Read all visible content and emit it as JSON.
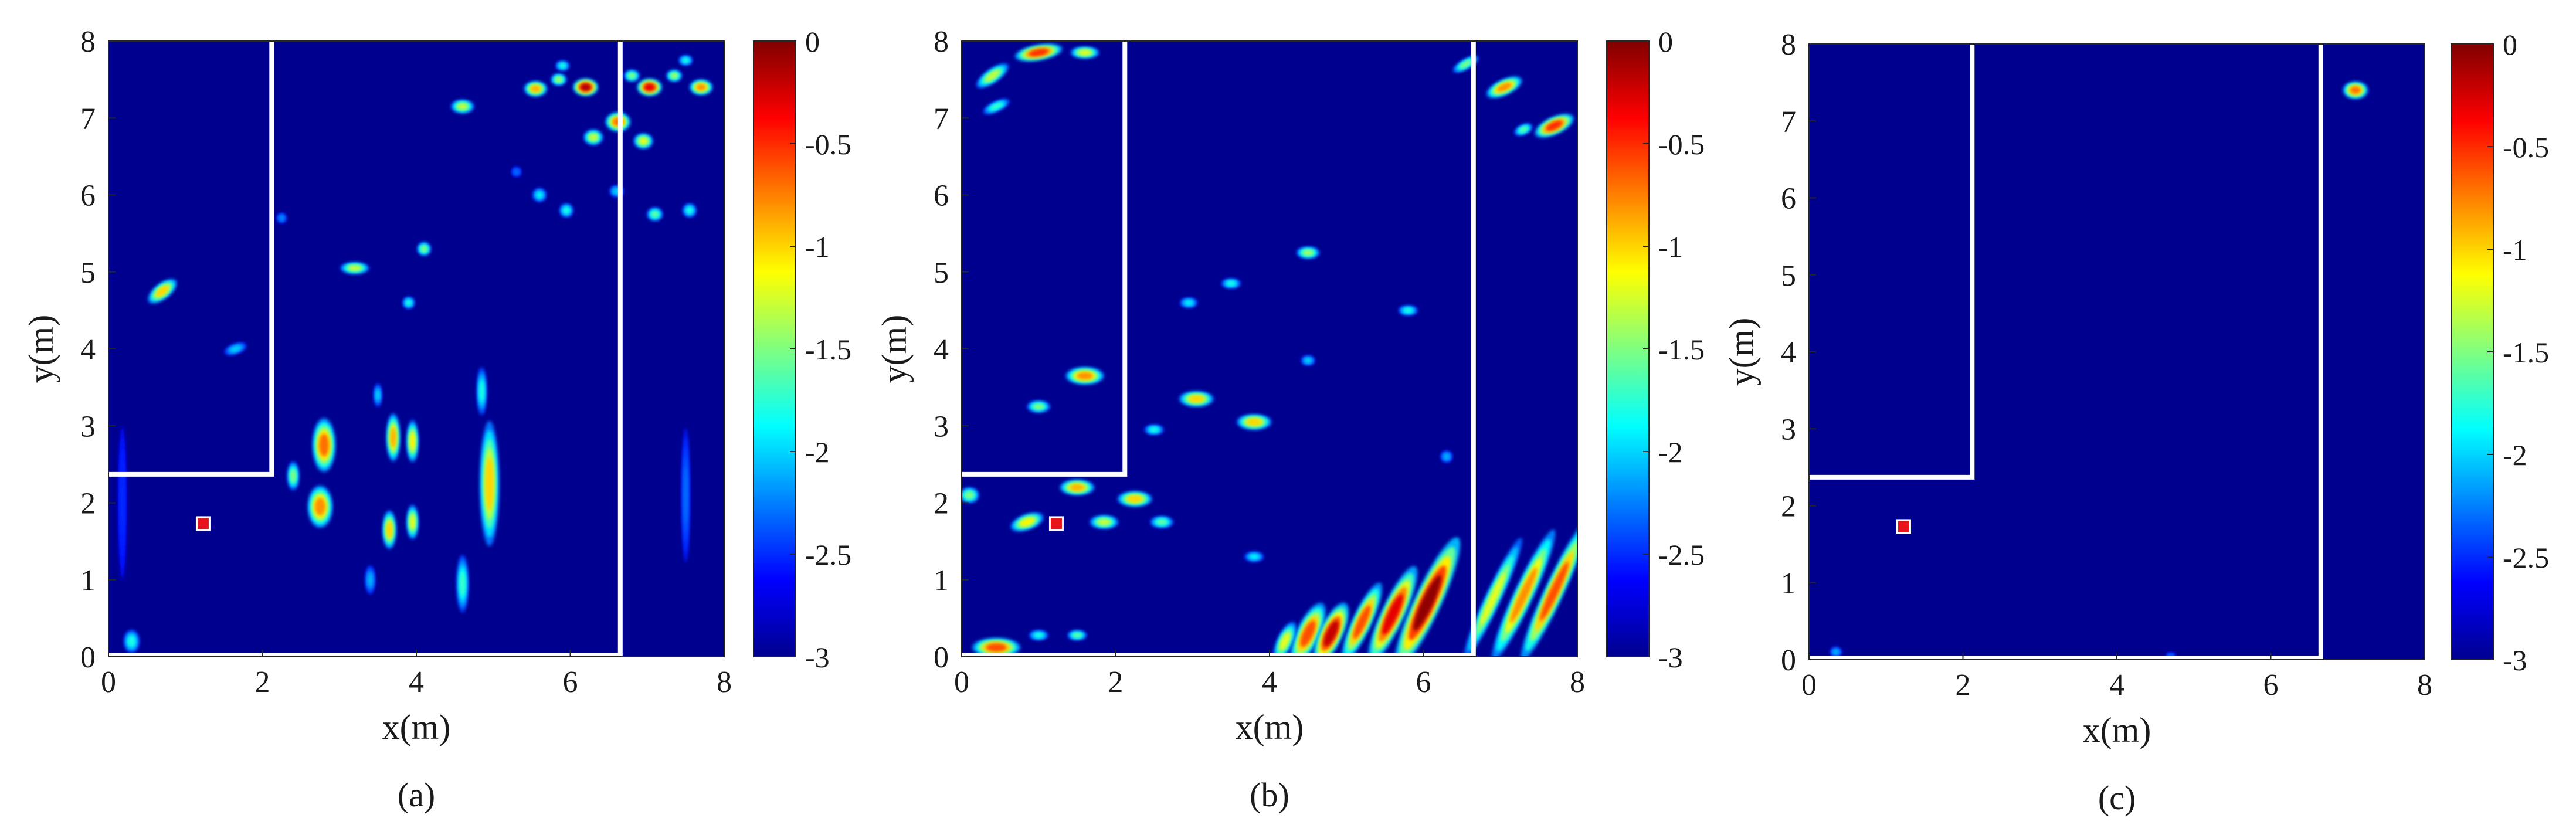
{
  "chart_data": [
    {
      "type": "heatmap",
      "panel_label": "(a)",
      "xlabel": "x(m)",
      "ylabel": "y(m)",
      "xlim": [
        0,
        8
      ],
      "ylim": [
        0,
        8
      ],
      "xticks": [
        "0",
        "2",
        "4",
        "6",
        "8"
      ],
      "yticks": [
        "0",
        "1",
        "2",
        "3",
        "4",
        "5",
        "6",
        "7",
        "8"
      ],
      "colorbar": {
        "range": [
          -3,
          0
        ],
        "ticks": [
          "0",
          "-0.5",
          "-1",
          "-1.5",
          "-2",
          "-2.5",
          "-3"
        ],
        "colormap": "jet"
      },
      "background_color": "#00008f",
      "walls": [
        [
          [
            0,
            2.37
          ],
          [
            2.12,
            2.37
          ],
          [
            2.12,
            8.0
          ]
        ],
        [
          [
            0,
            0.02
          ],
          [
            6.65,
            0.02
          ],
          [
            6.65,
            8.0
          ]
        ]
      ],
      "marker": {
        "x": 1.23,
        "y": 1.73,
        "color": "#e8141d"
      },
      "blobs": [
        {
          "x": 5.55,
          "y": 7.38,
          "rx": 0.12,
          "ry": 0.08,
          "v": -0.9
        },
        {
          "x": 6.2,
          "y": 7.4,
          "rx": 0.13,
          "ry": 0.09,
          "v": -0.15
        },
        {
          "x": 7.03,
          "y": 7.4,
          "rx": 0.13,
          "ry": 0.09,
          "v": -0.3
        },
        {
          "x": 7.7,
          "y": 7.4,
          "rx": 0.12,
          "ry": 0.08,
          "v": -0.8
        },
        {
          "x": 5.85,
          "y": 7.5,
          "rx": 0.08,
          "ry": 0.06,
          "v": -1.4
        },
        {
          "x": 6.8,
          "y": 7.55,
          "rx": 0.08,
          "ry": 0.06,
          "v": -1.5
        },
        {
          "x": 7.35,
          "y": 7.55,
          "rx": 0.08,
          "ry": 0.06,
          "v": -1.4
        },
        {
          "x": 5.9,
          "y": 7.68,
          "rx": 0.07,
          "ry": 0.05,
          "v": -1.8
        },
        {
          "x": 7.5,
          "y": 7.75,
          "rx": 0.07,
          "ry": 0.05,
          "v": -1.8
        },
        {
          "x": 6.62,
          "y": 6.95,
          "rx": 0.13,
          "ry": 0.1,
          "v": -0.7
        },
        {
          "x": 6.3,
          "y": 6.75,
          "rx": 0.1,
          "ry": 0.08,
          "v": -1.3
        },
        {
          "x": 6.95,
          "y": 6.7,
          "rx": 0.1,
          "ry": 0.08,
          "v": -1.2
        },
        {
          "x": 4.6,
          "y": 7.15,
          "rx": 0.12,
          "ry": 0.07,
          "v": -1.3
        },
        {
          "x": 5.6,
          "y": 6.0,
          "rx": 0.07,
          "ry": 0.07,
          "v": -1.9
        },
        {
          "x": 5.95,
          "y": 5.8,
          "rx": 0.07,
          "ry": 0.07,
          "v": -1.8
        },
        {
          "x": 7.1,
          "y": 5.75,
          "rx": 0.08,
          "ry": 0.07,
          "v": -1.6
        },
        {
          "x": 7.55,
          "y": 5.8,
          "rx": 0.07,
          "ry": 0.07,
          "v": -1.8
        },
        {
          "x": 6.6,
          "y": 6.05,
          "rx": 0.07,
          "ry": 0.06,
          "v": -2.0
        },
        {
          "x": 4.1,
          "y": 5.3,
          "rx": 0.07,
          "ry": 0.07,
          "v": -1.5
        },
        {
          "x": 3.2,
          "y": 5.05,
          "rx": 0.15,
          "ry": 0.06,
          "v": -1.3
        },
        {
          "x": 3.9,
          "y": 4.6,
          "rx": 0.06,
          "ry": 0.06,
          "v": -1.8
        },
        {
          "x": 0.7,
          "y": 4.75,
          "rx": 0.18,
          "ry": 0.08,
          "v": -1.0,
          "rot": -38
        },
        {
          "x": 1.65,
          "y": 4.0,
          "rx": 0.12,
          "ry": 0.05,
          "v": -2.0,
          "rot": -20
        },
        {
          "x": 2.8,
          "y": 2.75,
          "rx": 0.12,
          "ry": 0.28,
          "v": -0.7
        },
        {
          "x": 2.75,
          "y": 1.95,
          "rx": 0.13,
          "ry": 0.22,
          "v": -0.8
        },
        {
          "x": 2.4,
          "y": 2.35,
          "rx": 0.06,
          "ry": 0.15,
          "v": -1.5
        },
        {
          "x": 3.7,
          "y": 2.85,
          "rx": 0.07,
          "ry": 0.25,
          "v": -0.9
        },
        {
          "x": 3.95,
          "y": 2.8,
          "rx": 0.06,
          "ry": 0.22,
          "v": -1.1
        },
        {
          "x": 3.65,
          "y": 1.65,
          "rx": 0.07,
          "ry": 0.2,
          "v": -1.0
        },
        {
          "x": 3.95,
          "y": 1.75,
          "rx": 0.06,
          "ry": 0.18,
          "v": -1.2
        },
        {
          "x": 3.5,
          "y": 3.4,
          "rx": 0.04,
          "ry": 0.12,
          "v": -2.0
        },
        {
          "x": 4.95,
          "y": 2.25,
          "rx": 0.1,
          "ry": 0.65,
          "v": -1.0
        },
        {
          "x": 4.85,
          "y": 3.45,
          "rx": 0.05,
          "ry": 0.25,
          "v": -1.8
        },
        {
          "x": 4.6,
          "y": 0.95,
          "rx": 0.06,
          "ry": 0.3,
          "v": -1.7
        },
        {
          "x": 3.4,
          "y": 1.0,
          "rx": 0.05,
          "ry": 0.15,
          "v": -2.1
        },
        {
          "x": 0.3,
          "y": 0.2,
          "rx": 0.08,
          "ry": 0.12,
          "v": -1.8
        },
        {
          "x": 7.5,
          "y": 2.1,
          "rx": 0.04,
          "ry": 0.7,
          "v": -2.3
        },
        {
          "x": 0.18,
          "y": 2.0,
          "rx": 0.04,
          "ry": 0.8,
          "v": -2.5
        },
        {
          "x": 2.25,
          "y": 5.7,
          "rx": 0.05,
          "ry": 0.05,
          "v": -2.2
        },
        {
          "x": 5.3,
          "y": 6.3,
          "rx": 0.05,
          "ry": 0.05,
          "v": -2.3
        }
      ]
    },
    {
      "type": "heatmap",
      "panel_label": "(b)",
      "xlabel": "x(m)",
      "ylabel": "y(m)",
      "xlim": [
        0,
        8
      ],
      "ylim": [
        0,
        8
      ],
      "xticks": [
        "0",
        "2",
        "4",
        "6",
        "8"
      ],
      "yticks": [
        "0",
        "1",
        "2",
        "3",
        "4",
        "5",
        "6",
        "7",
        "8"
      ],
      "colorbar": {
        "range": [
          -3,
          0
        ],
        "ticks": [
          "0",
          "-0.5",
          "-1",
          "-1.5",
          "-2",
          "-2.5",
          "-3"
        ],
        "colormap": "jet"
      },
      "background_color": "#00008f",
      "walls": [
        [
          [
            0,
            2.37
          ],
          [
            2.12,
            2.37
          ],
          [
            2.12,
            8.0
          ]
        ],
        [
          [
            0,
            0.02
          ],
          [
            6.65,
            0.02
          ],
          [
            6.65,
            8.0
          ]
        ]
      ],
      "marker": {
        "x": 1.23,
        "y": 1.73,
        "color": "#e8141d"
      },
      "blobs": [
        {
          "x": 1.0,
          "y": 7.85,
          "rx": 0.25,
          "ry": 0.08,
          "v": -0.5,
          "rot": -10
        },
        {
          "x": 1.6,
          "y": 7.85,
          "rx": 0.15,
          "ry": 0.06,
          "v": -1.2
        },
        {
          "x": 0.4,
          "y": 7.55,
          "rx": 0.2,
          "ry": 0.07,
          "v": -1.3,
          "rot": -35
        },
        {
          "x": 0.45,
          "y": 7.15,
          "rx": 0.15,
          "ry": 0.05,
          "v": -1.7,
          "rot": -25
        },
        {
          "x": 7.05,
          "y": 7.4,
          "rx": 0.2,
          "ry": 0.08,
          "v": -0.8,
          "rot": -25
        },
        {
          "x": 7.7,
          "y": 6.9,
          "rx": 0.22,
          "ry": 0.09,
          "v": -0.5,
          "rot": -25
        },
        {
          "x": 6.55,
          "y": 7.7,
          "rx": 0.15,
          "ry": 0.05,
          "v": -1.5,
          "rot": -30
        },
        {
          "x": 7.3,
          "y": 6.85,
          "rx": 0.1,
          "ry": 0.05,
          "v": -1.6,
          "rot": -25
        },
        {
          "x": 4.5,
          "y": 5.25,
          "rx": 0.12,
          "ry": 0.06,
          "v": -1.4
        },
        {
          "x": 3.5,
          "y": 4.85,
          "rx": 0.1,
          "ry": 0.05,
          "v": -1.8
        },
        {
          "x": 2.95,
          "y": 4.6,
          "rx": 0.09,
          "ry": 0.05,
          "v": -1.9
        },
        {
          "x": 5.8,
          "y": 4.5,
          "rx": 0.1,
          "ry": 0.05,
          "v": -1.8
        },
        {
          "x": 1.6,
          "y": 3.65,
          "rx": 0.2,
          "ry": 0.09,
          "v": -0.8
        },
        {
          "x": 3.05,
          "y": 3.35,
          "rx": 0.18,
          "ry": 0.08,
          "v": -1.0
        },
        {
          "x": 3.8,
          "y": 3.05,
          "rx": 0.18,
          "ry": 0.08,
          "v": -1.0
        },
        {
          "x": 1.0,
          "y": 3.25,
          "rx": 0.12,
          "ry": 0.06,
          "v": -1.5
        },
        {
          "x": 2.5,
          "y": 2.95,
          "rx": 0.1,
          "ry": 0.05,
          "v": -1.8
        },
        {
          "x": 1.5,
          "y": 2.2,
          "rx": 0.18,
          "ry": 0.08,
          "v": -0.9
        },
        {
          "x": 2.25,
          "y": 2.05,
          "rx": 0.18,
          "ry": 0.08,
          "v": -1.0
        },
        {
          "x": 0.1,
          "y": 2.1,
          "rx": 0.1,
          "ry": 0.08,
          "v": -1.5
        },
        {
          "x": 0.85,
          "y": 1.75,
          "rx": 0.18,
          "ry": 0.08,
          "v": -1.1,
          "rot": -20
        },
        {
          "x": 1.85,
          "y": 1.75,
          "rx": 0.15,
          "ry": 0.07,
          "v": -1.3
        },
        {
          "x": 2.6,
          "y": 1.75,
          "rx": 0.12,
          "ry": 0.06,
          "v": -1.6
        },
        {
          "x": 3.8,
          "y": 1.3,
          "rx": 0.1,
          "ry": 0.05,
          "v": -1.9
        },
        {
          "x": 0.45,
          "y": 0.12,
          "rx": 0.25,
          "ry": 0.1,
          "v": -0.6
        },
        {
          "x": 1.0,
          "y": 0.28,
          "rx": 0.1,
          "ry": 0.05,
          "v": -1.8
        },
        {
          "x": 1.5,
          "y": 0.28,
          "rx": 0.1,
          "ry": 0.05,
          "v": -1.6
        },
        {
          "x": 4.5,
          "y": 0.3,
          "rx": 0.12,
          "ry": 0.35,
          "v": -0.6,
          "rot": 25
        },
        {
          "x": 4.8,
          "y": 0.3,
          "rx": 0.12,
          "ry": 0.35,
          "v": -0.2,
          "rot": 25
        },
        {
          "x": 5.2,
          "y": 0.45,
          "rx": 0.1,
          "ry": 0.45,
          "v": -0.6,
          "rot": 25
        },
        {
          "x": 5.6,
          "y": 0.55,
          "rx": 0.12,
          "ry": 0.55,
          "v": -0.3,
          "rot": 25
        },
        {
          "x": 6.05,
          "y": 0.7,
          "rx": 0.14,
          "ry": 0.75,
          "v": -0.05,
          "rot": 25
        },
        {
          "x": 4.2,
          "y": 0.2,
          "rx": 0.08,
          "ry": 0.22,
          "v": -1.2,
          "rot": 25
        },
        {
          "x": 6.9,
          "y": 0.75,
          "rx": 0.08,
          "ry": 0.7,
          "v": -1.2,
          "rot": 25
        },
        {
          "x": 7.3,
          "y": 0.8,
          "rx": 0.1,
          "ry": 0.75,
          "v": -0.8,
          "rot": 25
        },
        {
          "x": 7.7,
          "y": 0.85,
          "rx": 0.1,
          "ry": 0.8,
          "v": -0.6,
          "rot": 25
        },
        {
          "x": 6.3,
          "y": 2.6,
          "rx": 0.06,
          "ry": 0.06,
          "v": -2.1
        },
        {
          "x": 4.5,
          "y": 3.85,
          "rx": 0.07,
          "ry": 0.05,
          "v": -2.0
        }
      ]
    },
    {
      "type": "heatmap",
      "panel_label": "(c)",
      "xlabel": "x(m)",
      "ylabel": "y(m)",
      "xlim": [
        0,
        8
      ],
      "ylim": [
        0,
        8
      ],
      "xticks": [
        "0",
        "2",
        "4",
        "6",
        "8"
      ],
      "yticks": [
        "0",
        "1",
        "2",
        "3",
        "4",
        "5",
        "6",
        "7",
        "8"
      ],
      "colorbar": {
        "range": [
          -3,
          0
        ],
        "ticks": [
          "0",
          "-0.5",
          "-1",
          "-1.5",
          "-2",
          "-2.5",
          "-3"
        ],
        "colormap": "jet"
      },
      "background_color": "#00008f",
      "walls": [
        [
          [
            0,
            2.37
          ],
          [
            2.12,
            2.37
          ],
          [
            2.12,
            8.0
          ]
        ],
        [
          [
            0,
            0.02
          ],
          [
            6.65,
            0.02
          ],
          [
            6.65,
            8.0
          ]
        ]
      ],
      "marker": {
        "x": 1.23,
        "y": 1.73,
        "color": "#e8141d"
      },
      "blobs": [
        {
          "x": 7.1,
          "y": 7.4,
          "rx": 0.13,
          "ry": 0.09,
          "v": -0.7
        },
        {
          "x": 0.35,
          "y": 0.1,
          "rx": 0.06,
          "ry": 0.05,
          "v": -2.1
        },
        {
          "x": 4.7,
          "y": 0.05,
          "rx": 0.05,
          "ry": 0.03,
          "v": -2.3
        }
      ]
    }
  ]
}
